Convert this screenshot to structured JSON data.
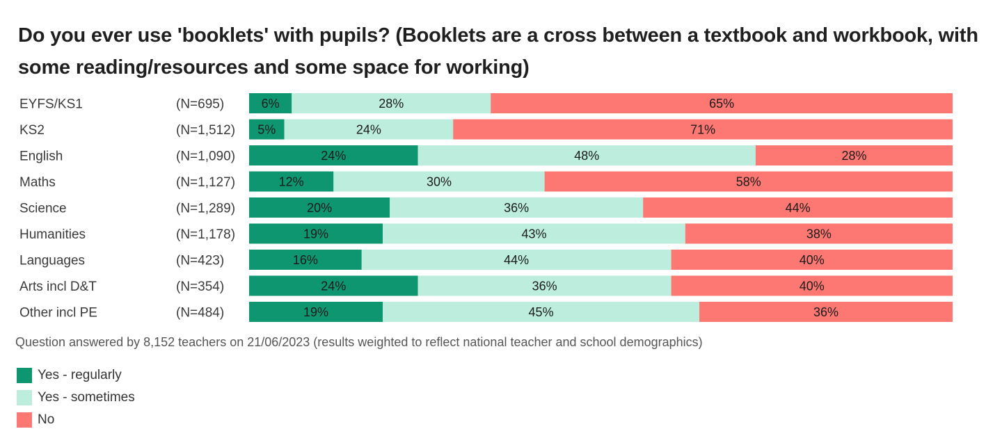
{
  "chart_data": {
    "type": "bar",
    "orientation": "horizontal",
    "stacked": true,
    "title": "Do you ever use 'booklets' with pupils? (Booklets are a cross between a textbook and workbook, with some reading/resources and some space for working)",
    "categories": [
      "EYFS/KS1",
      "KS2",
      "English",
      "Maths",
      "Science",
      "Humanities",
      "Languages",
      "Arts incl D&T",
      "Other incl PE"
    ],
    "sample_sizes": [
      "(N=695)",
      "(N=1,512)",
      "(N=1,090)",
      "(N=1,127)",
      "(N=1,289)",
      "(N=1,178)",
      "(N=423)",
      "(N=354)",
      "(N=484)"
    ],
    "series": [
      {
        "name": "Yes - regularly",
        "color": "#0e9670",
        "values": [
          6,
          5,
          24,
          12,
          20,
          19,
          16,
          24,
          19
        ]
      },
      {
        "name": "Yes - sometimes",
        "color": "#bdeedd",
        "values": [
          28,
          24,
          48,
          30,
          36,
          43,
          44,
          36,
          45
        ]
      },
      {
        "name": "No",
        "color": "#fd7873",
        "values": [
          65,
          71,
          28,
          58,
          44,
          38,
          40,
          40,
          36
        ]
      }
    ],
    "value_suffix": "%",
    "xlim": [
      0,
      100
    ],
    "grid": false,
    "legend_position": "bottom-left",
    "note": "Question answered by 8,152 teachers on 21/06/2023 (results weighted to reflect national teacher and school demographics)"
  }
}
